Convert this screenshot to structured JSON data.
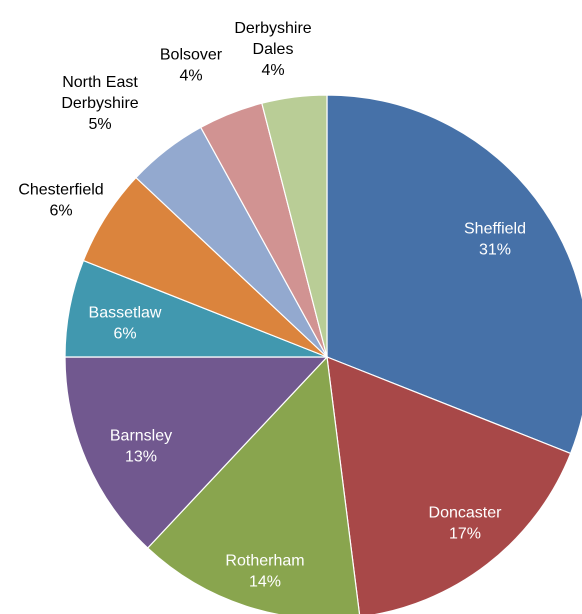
{
  "chart_data": {
    "type": "pie",
    "title": "",
    "start": "12 o'clock, clockwise",
    "slices": [
      {
        "label": "Sheffield",
        "value": 31,
        "value_label": "31%",
        "color": "#4671A8",
        "label_color": "#ffffff",
        "label_lines": [
          "Sheffield"
        ]
      },
      {
        "label": "Doncaster",
        "value": 17,
        "value_label": "17%",
        "color": "#A84848",
        "label_color": "#ffffff",
        "label_lines": [
          "Doncaster"
        ]
      },
      {
        "label": "Rotherham",
        "value": 14,
        "value_label": "14%",
        "color": "#89A54E",
        "label_color": "#ffffff",
        "label_lines": [
          "Rotherham"
        ]
      },
      {
        "label": "Barnsley",
        "value": 13,
        "value_label": "13%",
        "color": "#71588F",
        "label_color": "#ffffff",
        "label_lines": [
          "Barnsley"
        ]
      },
      {
        "label": "Bassetlaw",
        "value": 6,
        "value_label": "6%",
        "color": "#4198AF",
        "label_color": "#ffffff",
        "label_lines": [
          "Bassetlaw"
        ]
      },
      {
        "label": "Chesterfield",
        "value": 6,
        "value_label": "6%",
        "color": "#DB843D",
        "label_color": "#000000",
        "label_lines": [
          "Chesterfield"
        ]
      },
      {
        "label": "North East Derbyshire",
        "value": 5,
        "value_label": "5%",
        "color": "#93A9CF",
        "label_color": "#000000",
        "label_lines": [
          "North East",
          "Derbyshire"
        ]
      },
      {
        "label": "Bolsover",
        "value": 4,
        "value_label": "4%",
        "color": "#D19392",
        "label_color": "#000000",
        "label_lines": [
          "Bolsover"
        ]
      },
      {
        "label": "Derbyshire Dales",
        "value": 4,
        "value_label": "4%",
        "color": "#B9CD96",
        "label_color": "#000000",
        "label_lines": [
          "Derbyshire",
          "Dales"
        ]
      }
    ]
  }
}
